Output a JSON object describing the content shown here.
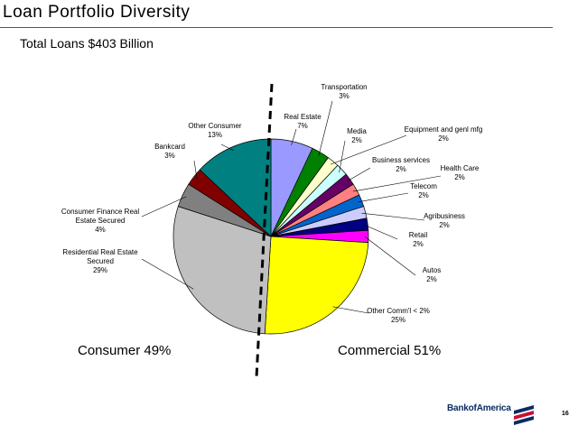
{
  "slide": {
    "title": "Loan Portfolio Diversity",
    "subtitle": "Total Loans $403 Billion",
    "page_number": "16"
  },
  "brand": {
    "name": "Bank of America",
    "text": "BankofAmerica",
    "logo_icon": "bank-of-america-flag-icon",
    "colors": {
      "blue": "#0b2b63",
      "red": "#c8102e"
    }
  },
  "chart_data": {
    "type": "pie",
    "title": "",
    "start": "12 o'clock",
    "direction": "clockwise",
    "divider": "dashed vertical line separating consumer and commercial",
    "slices": [
      {
        "label": "Real Estate",
        "value": 7,
        "color": "#9999ff"
      },
      {
        "label": "Transportation",
        "value": 3,
        "color": "#008000"
      },
      {
        "label": "Equipment and genl mfg",
        "value": 2,
        "color": "#ffffcc"
      },
      {
        "label": "Media",
        "value": 2,
        "color": "#ccffff"
      },
      {
        "label": "Business services",
        "value": 2,
        "color": "#660066"
      },
      {
        "label": "Health Care",
        "value": 2,
        "color": "#ff8080"
      },
      {
        "label": "Telecom",
        "value": 2,
        "color": "#0066cc"
      },
      {
        "label": "Agribusiness",
        "value": 2,
        "color": "#ccccff"
      },
      {
        "label": "Retail",
        "value": 2,
        "color": "#000080"
      },
      {
        "label": "Autos",
        "value": 2,
        "color": "#ff00ff"
      },
      {
        "label": "Other Comm'l < 2%",
        "value": 25,
        "color": "#ffff00"
      },
      {
        "label": "Residential Real Estate Secured",
        "value": 29,
        "color": "#c0c0c0"
      },
      {
        "label": "Consumer Finance Real Estate Secured",
        "value": 4,
        "color": "#808080"
      },
      {
        "label": "Bankcard",
        "value": 3,
        "color": "#800000"
      },
      {
        "label": "Other Consumer",
        "value": 13,
        "color": "#008080"
      }
    ],
    "labels": [
      {
        "lines": [
          "Transportation",
          "3%"
        ]
      },
      {
        "lines": [
          "Real Estate",
          "7%"
        ]
      },
      {
        "lines": [
          "Other Consumer",
          "13%"
        ]
      },
      {
        "lines": [
          "Media",
          "2%"
        ]
      },
      {
        "lines": [
          "Equipment and genl mfg",
          "2%"
        ]
      },
      {
        "lines": [
          "Bankcard",
          "3%"
        ]
      },
      {
        "lines": [
          "Business services",
          "2%"
        ]
      },
      {
        "lines": [
          "Health Care",
          "2%"
        ]
      },
      {
        "lines": [
          "Telecom",
          "2%"
        ]
      },
      {
        "lines": [
          "Consumer Finance Real",
          "Estate Secured",
          "4%"
        ]
      },
      {
        "lines": [
          "Agribusiness",
          "2%"
        ]
      },
      {
        "lines": [
          "Retail",
          "2%"
        ]
      },
      {
        "lines": [
          "Residential Real Estate",
          "Secured",
          "29%"
        ]
      },
      {
        "lines": [
          "Autos",
          "2%"
        ]
      },
      {
        "lines": [
          "Other Comm'l < 2%",
          "25%"
        ]
      }
    ],
    "groups": [
      {
        "label": "Consumer 49%"
      },
      {
        "label": "Commercial 51%"
      }
    ]
  }
}
